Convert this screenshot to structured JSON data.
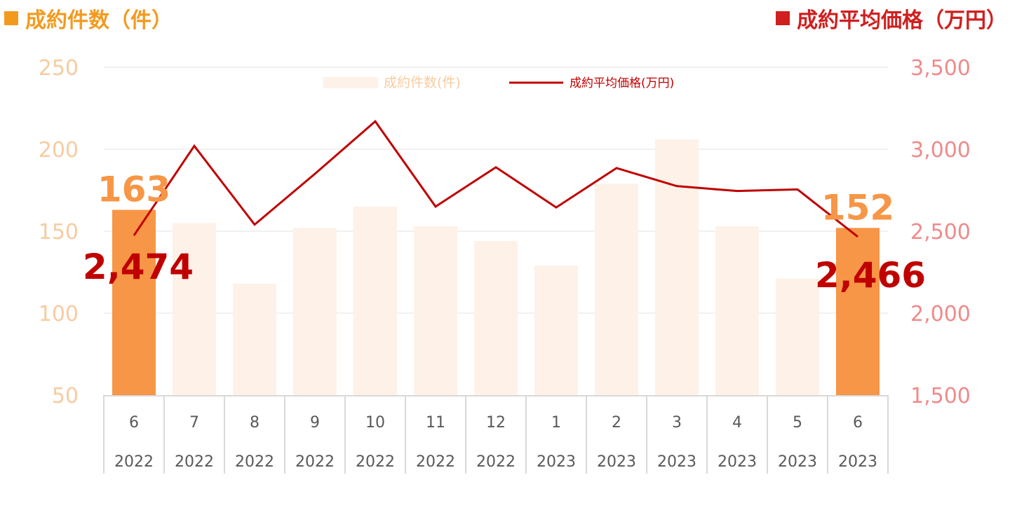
{
  "headers": {
    "left": "成約件数（件）",
    "right": "成約平均価格（万円）"
  },
  "colors": {
    "bar_light": "#fdf1e8",
    "bar_highlight": "#f79646",
    "line": "#c00000",
    "left_axis": "#f8cba0",
    "right_axis": "#f08a8a",
    "header_left": "#f39a1e",
    "header_right": "#d01f1f"
  },
  "chart_data": {
    "type": "bar",
    "categories": [
      "6",
      "7",
      "8",
      "9",
      "10",
      "11",
      "12",
      "1",
      "2",
      "3",
      "4",
      "5",
      "6"
    ],
    "category_years": [
      "2022",
      "2022",
      "2022",
      "2022",
      "2022",
      "2022",
      "2022",
      "2023",
      "2023",
      "2023",
      "2023",
      "2023",
      "2023"
    ],
    "series": [
      {
        "name": "成約件数(件)",
        "type": "bar",
        "axis": "left",
        "values": [
          163,
          155,
          118,
          152,
          165,
          153,
          144,
          129,
          179,
          206,
          153,
          121,
          152
        ],
        "highlight_indices": [
          0,
          12
        ]
      },
      {
        "name": "成約平均価格(万円)",
        "type": "line",
        "axis": "right",
        "values": [
          2474,
          3020,
          2540,
          2850,
          3170,
          2650,
          2890,
          2645,
          2885,
          2775,
          2745,
          2755,
          2466
        ]
      }
    ],
    "y_left": {
      "ylim": [
        50,
        250
      ],
      "ticks": [
        "250",
        "200",
        "150",
        "100",
        "50"
      ]
    },
    "y_right": {
      "ylim": [
        1500,
        3500
      ],
      "ticks": [
        "3,500",
        "3,000",
        "2,500",
        "2,000",
        "1,500"
      ]
    },
    "annotations": [
      {
        "text": "163",
        "series": 0,
        "index": 0
      },
      {
        "text": "152",
        "series": 0,
        "index": 12
      },
      {
        "text": "2,474",
        "series": 1,
        "index": 0
      },
      {
        "text": "2,466",
        "series": 1,
        "index": 12
      }
    ],
    "legend": {
      "position": "top-center"
    },
    "grid": true
  }
}
